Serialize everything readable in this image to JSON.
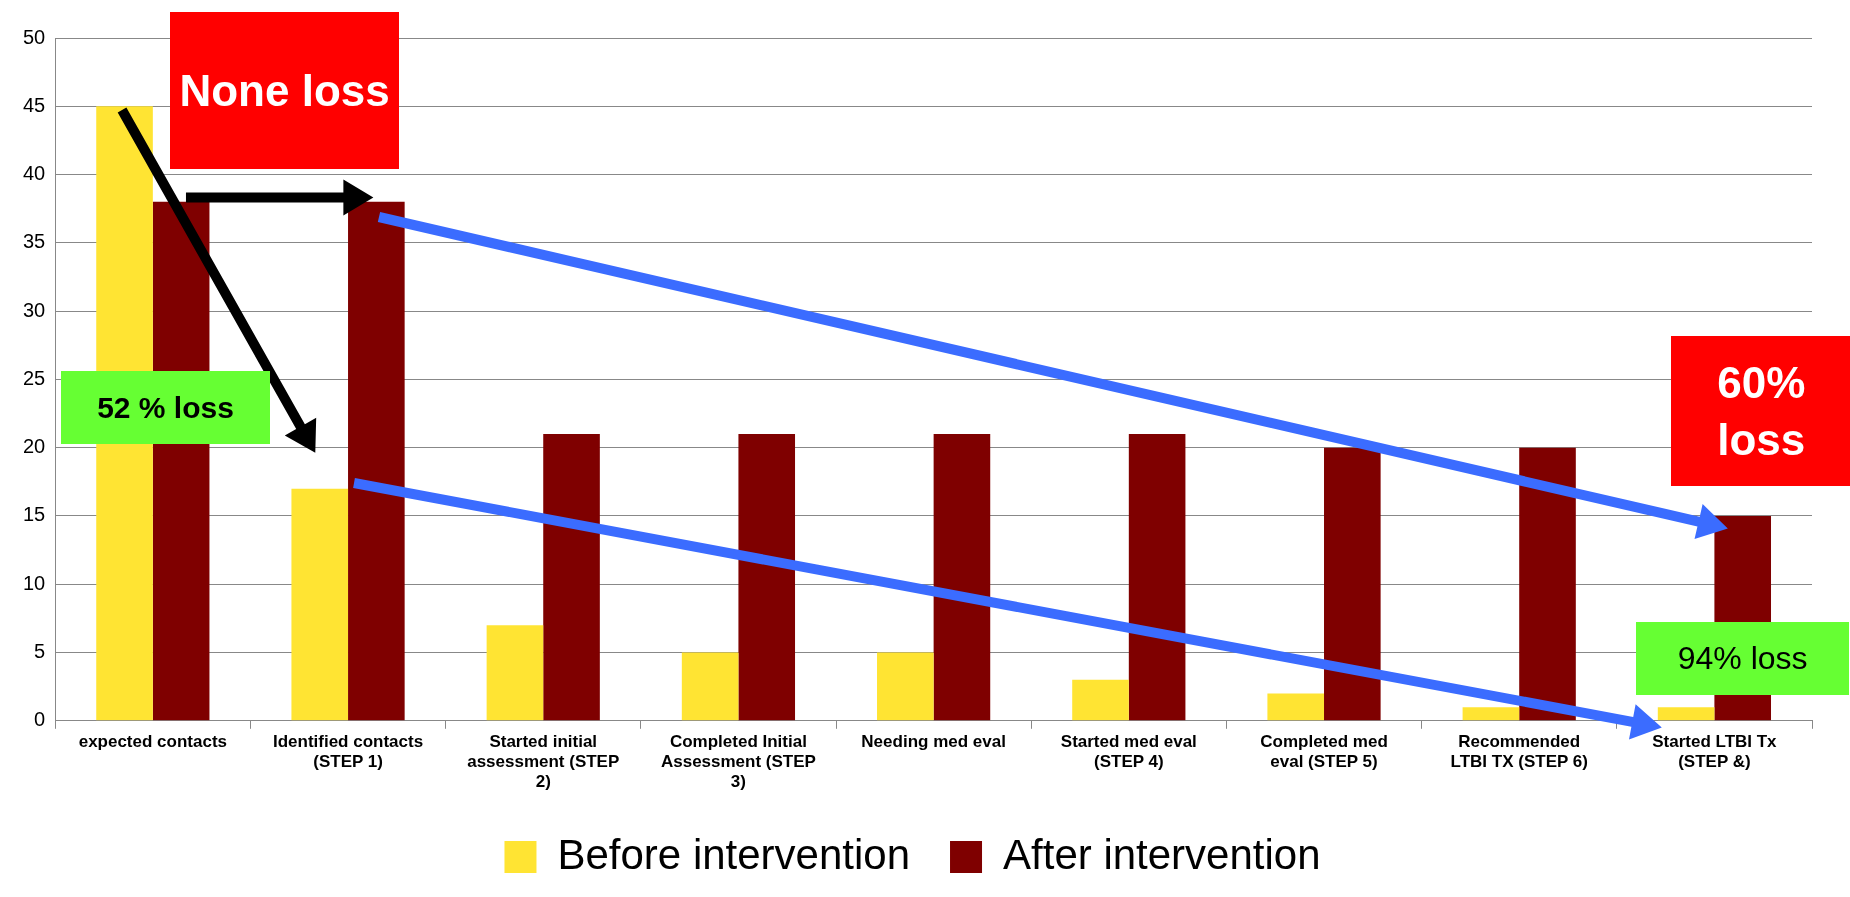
{
  "chart_data": {
    "type": "bar",
    "categories": [
      "expected contacts",
      "Identified contacts (STEP 1)",
      "Started initial assessment (STEP 2)",
      "Completed Initial Assessment (STEP 3)",
      "Needing med eval",
      "Started med eval (STEP 4)",
      "Completed med eval (STEP 5)",
      "Recommended LTBI TX (STEP 6)",
      "Started LTBI Tx (STEP &)"
    ],
    "series": [
      {
        "name": "Before intervention",
        "color": "#ffe433",
        "values": [
          45,
          17,
          7,
          5,
          5,
          3,
          2,
          1,
          1
        ]
      },
      {
        "name": "After intervention",
        "color": "#7f0000",
        "values": [
          38,
          38,
          21,
          21,
          21,
          21,
          20,
          20,
          15
        ]
      }
    ],
    "ylim": [
      0,
      50
    ],
    "yticks": [
      0,
      5,
      10,
      15,
      20,
      25,
      30,
      35,
      40,
      45,
      50
    ],
    "grid": "y",
    "legend": "bottom",
    "annotations": [
      "None loss",
      "52 % loss",
      "60% loss",
      "94% loss"
    ]
  }
}
